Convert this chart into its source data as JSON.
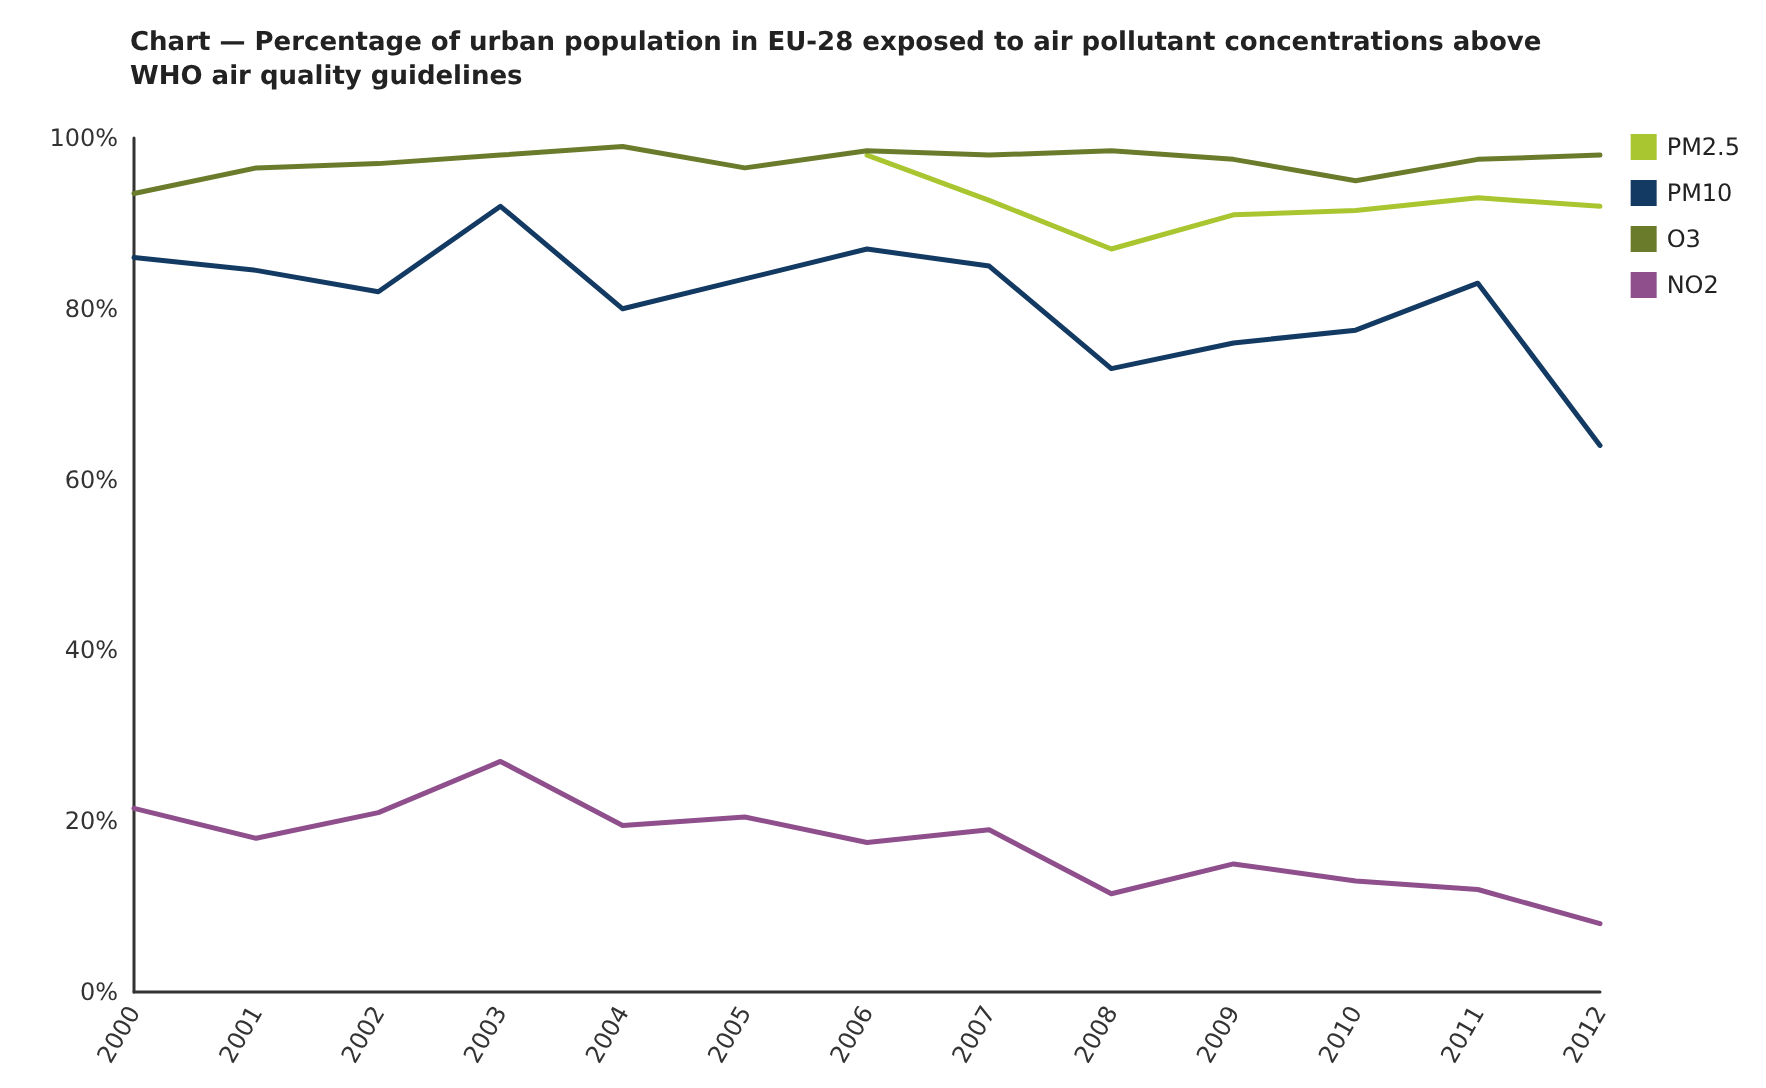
{
  "chart_data": {
    "type": "line",
    "title": "Chart — Percentage of urban population in EU-28 exposed to air pollutant concentrations above WHO air quality guidelines",
    "categories": [
      "2000",
      "2001",
      "2002",
      "2003",
      "2004",
      "2005",
      "2006",
      "2007",
      "2008",
      "2009",
      "2010",
      "2011",
      "2012"
    ],
    "series": [
      {
        "name": "PM2.5",
        "color": "#a9c52f",
        "values": [
          null,
          null,
          null,
          null,
          null,
          null,
          98,
          92.7,
          87,
          91,
          91.5,
          93,
          92
        ]
      },
      {
        "name": "PM10",
        "color": "#133a63",
        "values": [
          86,
          84.5,
          82,
          92,
          80,
          83.5,
          87,
          85,
          73,
          76,
          77.5,
          83,
          64
        ]
      },
      {
        "name": "O3",
        "color": "#6b7b2c",
        "values": [
          93.5,
          96.5,
          97,
          98,
          99,
          96.5,
          98.5,
          98,
          98.5,
          97.5,
          95,
          97.5,
          98
        ]
      },
      {
        "name": "NO2",
        "color": "#8e4f8c",
        "values": [
          21.5,
          18,
          21,
          27,
          19.5,
          20.5,
          17.5,
          19,
          11.5,
          15,
          13,
          12,
          8
        ]
      }
    ],
    "ylim": [
      0,
      100
    ],
    "yticks": [
      {
        "value": 0,
        "label": "0%"
      },
      {
        "value": 20,
        "label": "20%"
      },
      {
        "value": 40,
        "label": "40%"
      },
      {
        "value": 60,
        "label": "60%"
      },
      {
        "value": 80,
        "label": "80%"
      },
      {
        "value": 100,
        "label": "100%"
      }
    ],
    "grid": false,
    "legend": "top right",
    "marker": "none",
    "line_style": "solid"
  }
}
